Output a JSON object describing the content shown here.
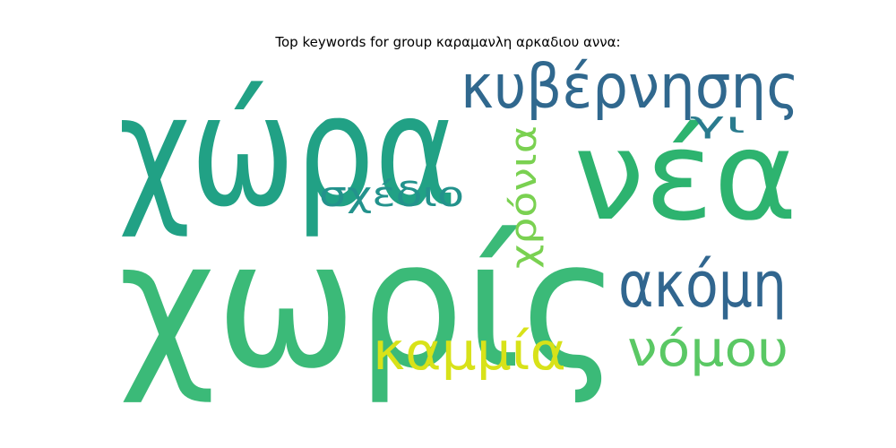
{
  "title": "Top keywords for group καραμανλη αρκαδιου αννα:",
  "words": [
    {
      "text": "χώρα",
      "color": "#21a185"
    },
    {
      "text": "χωρίς",
      "color": "#3bba78"
    },
    {
      "text": "νέα",
      "color": "#2db36f"
    },
    {
      "text": "κυβέρνησης",
      "color": "#30688e"
    },
    {
      "text": "ακόμη",
      "color": "#31668f"
    },
    {
      "text": "καμμία",
      "color": "#d8e219"
    },
    {
      "text": "νόμου",
      "color": "#5ac864"
    },
    {
      "text": "σχέδιο",
      "color": "#23928c"
    },
    {
      "text": "χρόνια",
      "color": "#7ad151"
    },
    {
      "text": "γι",
      "color": "#2a7b8e"
    }
  ]
}
